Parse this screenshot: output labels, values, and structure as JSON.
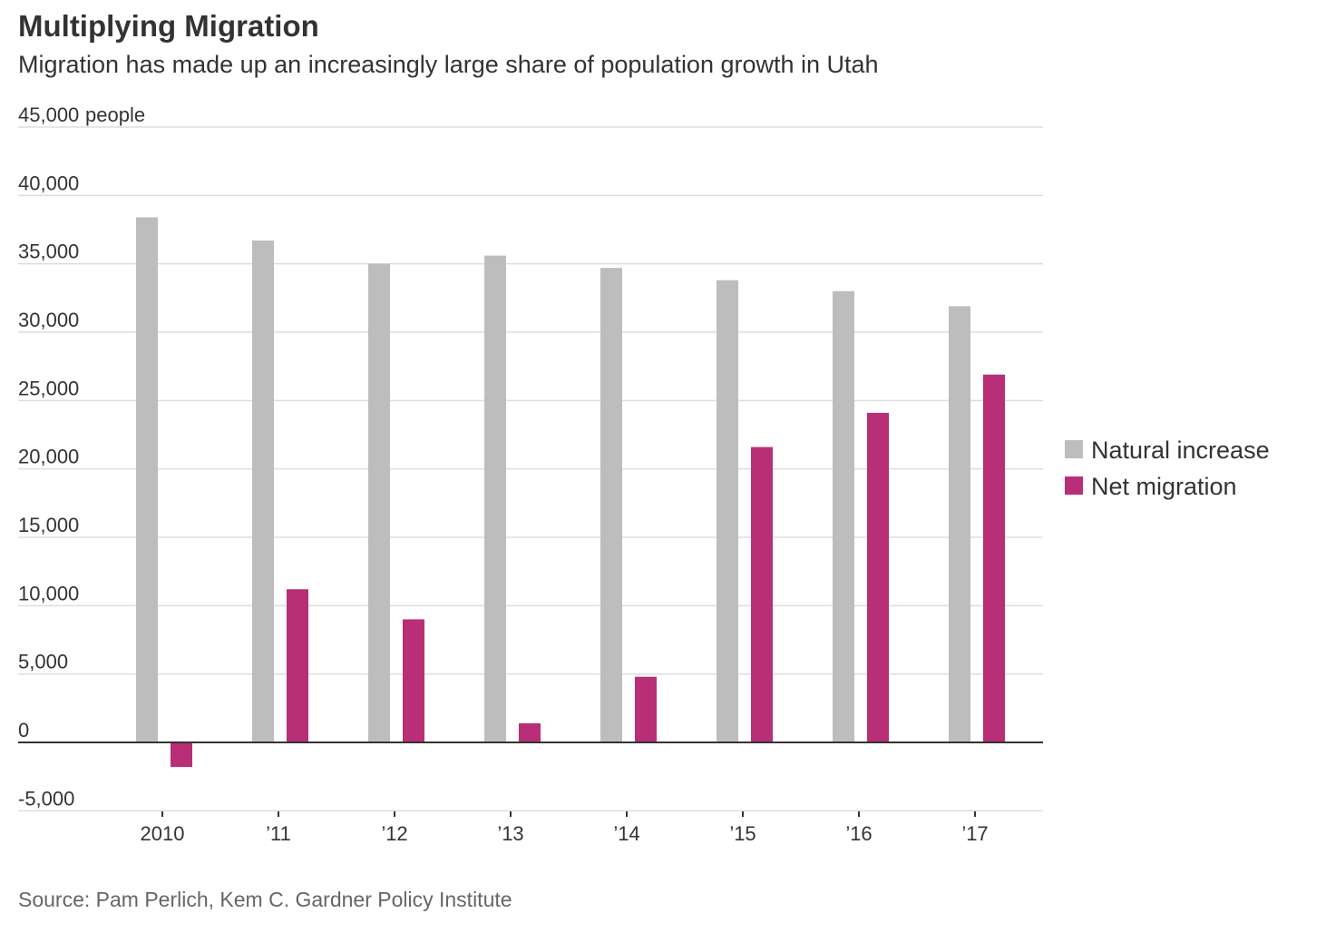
{
  "title": "Multiplying Migration",
  "subtitle": "Migration has made up an increasingly large share of population growth in Utah",
  "source": "Source: Pam Perlich, Kem C. Gardner Policy Institute",
  "chart_data": {
    "type": "bar",
    "title": "Multiplying Migration",
    "subtitle": "Migration has made up an increasingly large share of population growth in Utah",
    "unit_label": "people",
    "categories": [
      "2010",
      "’11",
      "’12",
      "’13",
      "’14",
      "’15",
      "’16",
      "’17"
    ],
    "series": [
      {
        "name": "Natural increase",
        "color": "#bdbdbd",
        "values": [
          38400,
          36700,
          35000,
          35600,
          34700,
          33800,
          33000,
          31900
        ]
      },
      {
        "name": "Net migration",
        "color": "#b82e77",
        "values": [
          -1800,
          11200,
          9000,
          1400,
          4800,
          21600,
          24100,
          26900
        ]
      }
    ],
    "ylim": [
      -5000,
      45000
    ],
    "yticks": [
      -5000,
      0,
      5000,
      10000,
      15000,
      20000,
      25000,
      30000,
      35000,
      40000,
      45000
    ],
    "ytick_labels": [
      "-5,000",
      "0",
      "5,000",
      "10,000",
      "15,000",
      "20,000",
      "25,000",
      "30,000",
      "35,000",
      "40,000",
      "45,000"
    ],
    "grid": true,
    "legend_position": "right"
  }
}
